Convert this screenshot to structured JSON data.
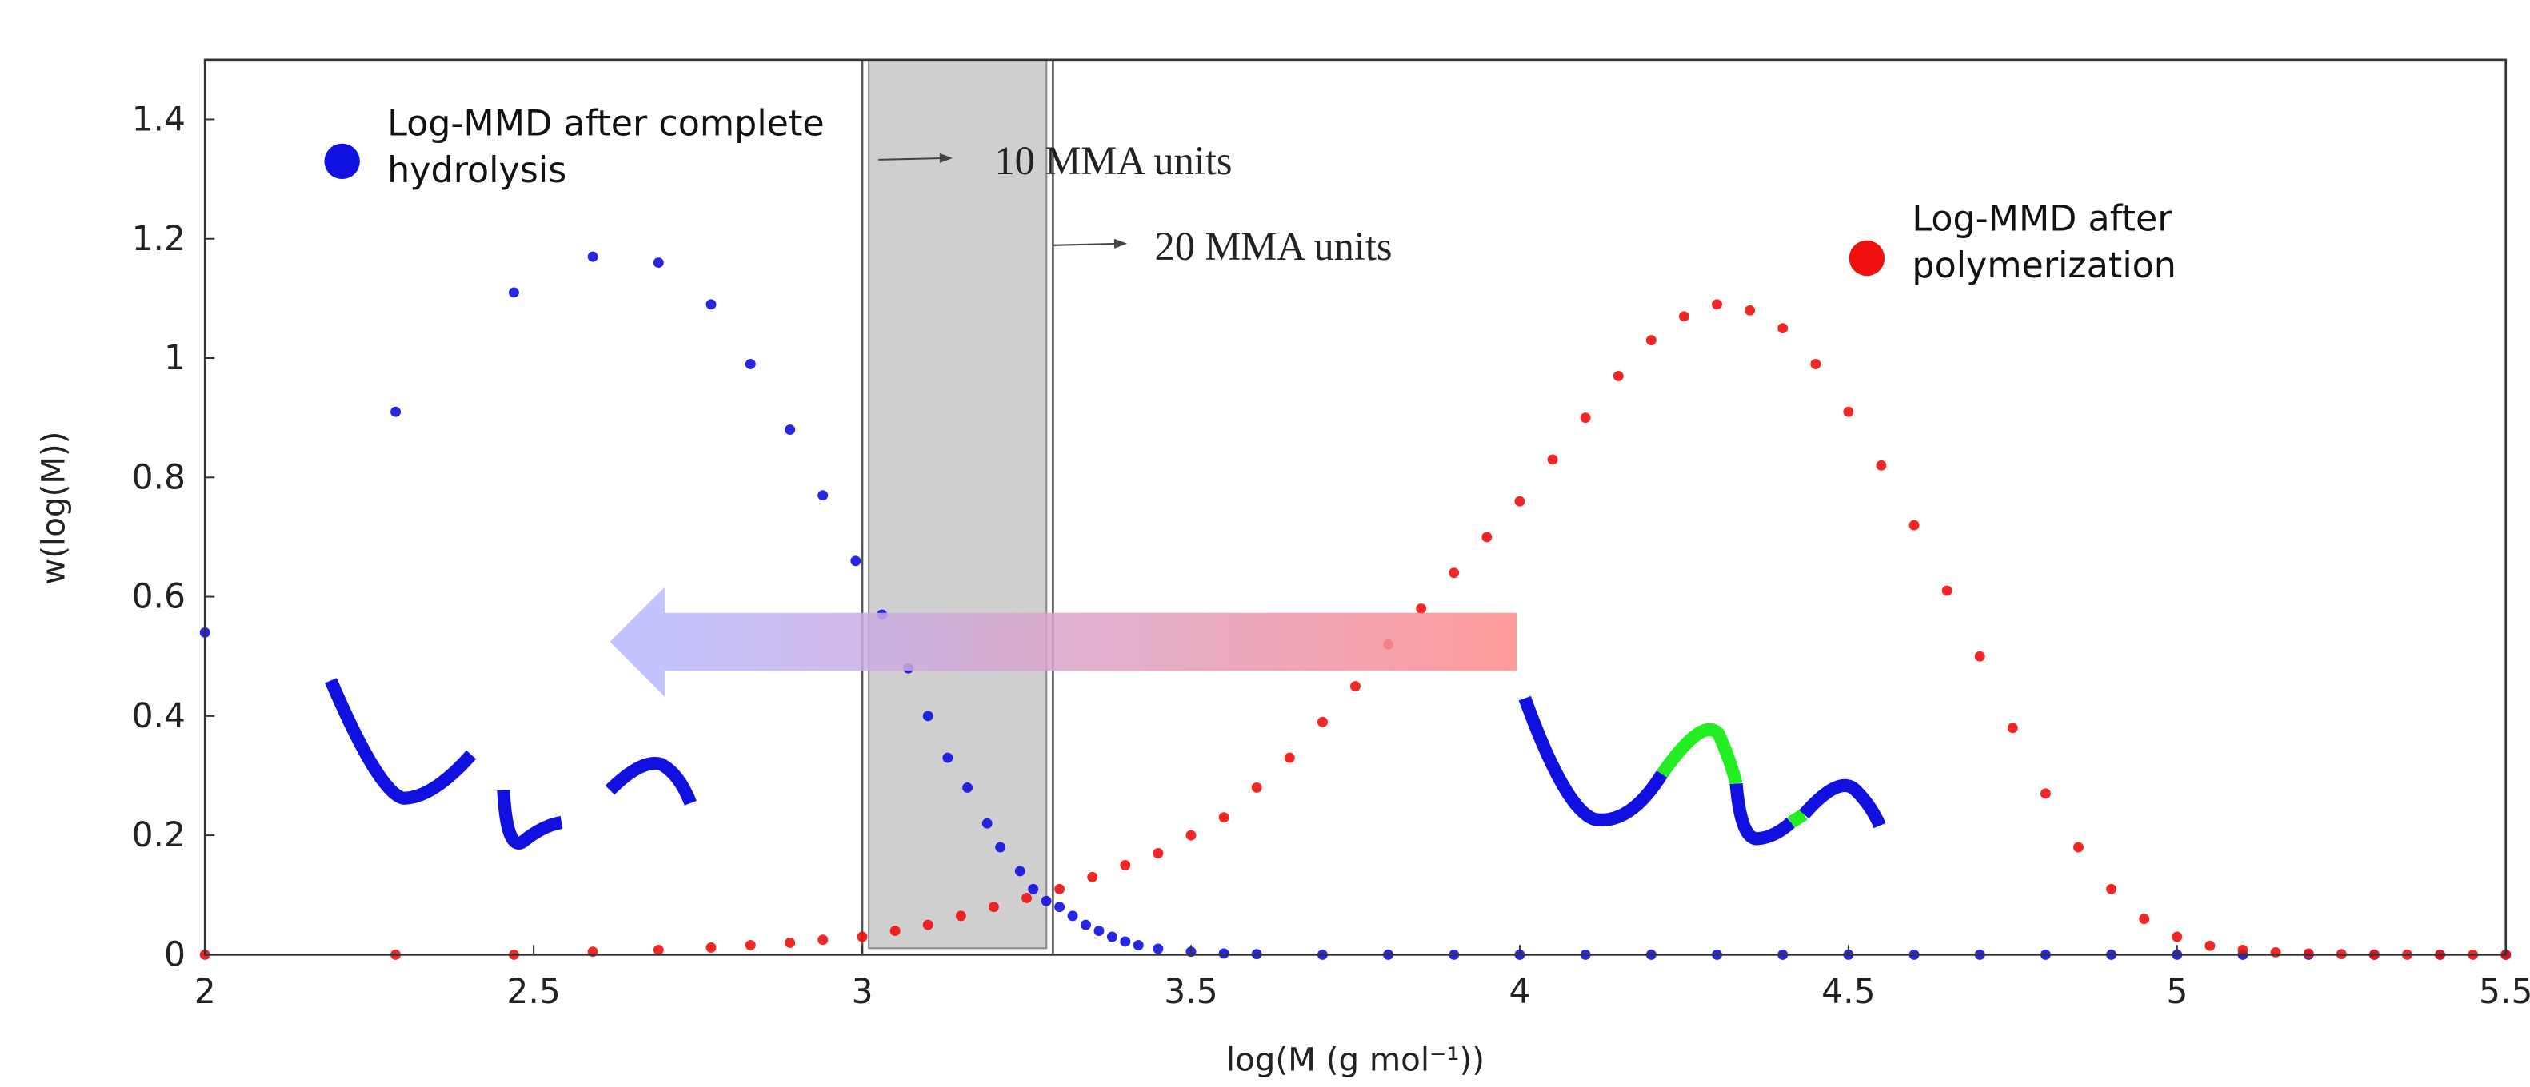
{
  "chart_data": {
    "type": "scatter",
    "xlabel": "log(M (g mol⁻¹))",
    "ylabel": "w(log(M))",
    "xlim": [
      2,
      5.5
    ],
    "ylim": [
      0,
      1.5
    ],
    "xticks": [
      2,
      2.5,
      3,
      3.5,
      4,
      4.5,
      5,
      5.5
    ],
    "yticks": [
      0,
      0.2,
      0.4,
      0.6,
      0.8,
      1,
      1.2,
      1.4
    ],
    "annotations": [
      {
        "text": "10 MMA units",
        "x": 3.0
      },
      {
        "text": "20 MMA units",
        "x": 3.29
      }
    ],
    "series": [
      {
        "name": "Log-MMD after complete hydrolysis",
        "color": "#1010e0",
        "x": [
          2,
          2.29,
          2.47,
          2.59,
          2.69,
          2.77,
          2.83,
          2.89,
          2.94,
          2.99,
          3.03,
          3.07,
          3.1,
          3.13,
          3.16,
          3.19,
          3.21,
          3.24,
          3.26,
          3.28,
          3.3,
          3.32,
          3.34,
          3.36,
          3.38,
          3.4,
          3.42,
          3.45,
          3.5,
          3.55,
          3.6,
          3.7,
          3.8,
          3.9,
          4.0,
          4.1,
          4.2,
          4.3,
          4.4,
          4.5,
          4.6,
          4.7,
          4.8,
          4.9,
          5.0,
          5.1,
          5.2,
          5.3,
          5.4,
          5.5
        ],
        "values": [
          0.54,
          0.91,
          1.11,
          1.17,
          1.16,
          1.09,
          0.99,
          0.88,
          0.77,
          0.66,
          0.57,
          0.48,
          0.4,
          0.33,
          0.28,
          0.22,
          0.18,
          0.14,
          0.11,
          0.09,
          0.08,
          0.065,
          0.05,
          0.04,
          0.03,
          0.022,
          0.016,
          0.01,
          0.005,
          0.002,
          0.001,
          0,
          0,
          0,
          0,
          0,
          0,
          0,
          0,
          0,
          0,
          0,
          0,
          0,
          0,
          0,
          0,
          0,
          0,
          0
        ]
      },
      {
        "name": "Log-MMD after polymerization",
        "color": "#f01010",
        "x": [
          2,
          2.29,
          2.47,
          2.59,
          2.69,
          2.77,
          2.83,
          2.89,
          2.94,
          3.0,
          3.05,
          3.1,
          3.15,
          3.2,
          3.25,
          3.3,
          3.35,
          3.4,
          3.45,
          3.5,
          3.55,
          3.6,
          3.65,
          3.7,
          3.75,
          3.8,
          3.85,
          3.9,
          3.95,
          4.0,
          4.05,
          4.1,
          4.15,
          4.2,
          4.25,
          4.3,
          4.35,
          4.4,
          4.45,
          4.5,
          4.55,
          4.6,
          4.65,
          4.7,
          4.75,
          4.8,
          4.85,
          4.9,
          4.95,
          5.0,
          5.05,
          5.1,
          5.15,
          5.2,
          5.25,
          5.3,
          5.35,
          5.4,
          5.45,
          5.5
        ],
        "values": [
          0,
          0,
          0,
          0.005,
          0.008,
          0.012,
          0.016,
          0.02,
          0.025,
          0.03,
          0.04,
          0.05,
          0.065,
          0.08,
          0.095,
          0.11,
          0.13,
          0.15,
          0.17,
          0.2,
          0.23,
          0.28,
          0.33,
          0.39,
          0.45,
          0.52,
          0.58,
          0.64,
          0.7,
          0.76,
          0.83,
          0.9,
          0.97,
          1.03,
          1.07,
          1.09,
          1.08,
          1.05,
          0.99,
          0.91,
          0.82,
          0.72,
          0.61,
          0.5,
          0.38,
          0.27,
          0.18,
          0.11,
          0.06,
          0.03,
          0.015,
          0.008,
          0.004,
          0.002,
          0.001,
          0,
          0,
          0,
          0,
          0
        ]
      }
    ]
  }
}
